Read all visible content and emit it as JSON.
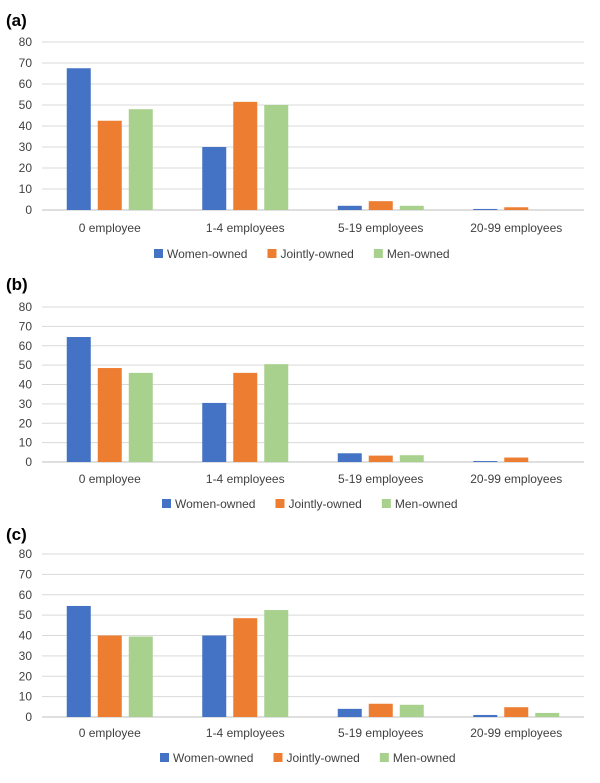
{
  "colors": {
    "women": "#4472C4",
    "jointly": "#ED7D31",
    "men": "#A9D18E",
    "grid": "#D9D9D9",
    "text": "#404040"
  },
  "chart_data": [
    {
      "panel_label": "(a)",
      "type": "bar",
      "categories": [
        "0 employee",
        "1-4 employees",
        "5-19 employees",
        "20-99 employees"
      ],
      "series": [
        {
          "name": "Women-owned",
          "values": [
            67.5,
            30,
            2,
            0.5
          ]
        },
        {
          "name": "Jointly-owned",
          "values": [
            42.5,
            51.5,
            4.2,
            1.3
          ]
        },
        {
          "name": "Men-owned",
          "values": [
            48,
            50,
            2,
            0
          ]
        }
      ],
      "ylim": [
        0,
        80
      ],
      "yticks": [
        0,
        10,
        20,
        30,
        40,
        50,
        60,
        70,
        80
      ],
      "grid": true,
      "legend": "bottom"
    },
    {
      "panel_label": "(b)",
      "type": "bar",
      "categories": [
        "0 employee",
        "1-4 employees",
        "5-19 employees",
        "20-99 employees"
      ],
      "series": [
        {
          "name": "Women-owned",
          "values": [
            64.5,
            30.5,
            4.5,
            0.5
          ]
        },
        {
          "name": "Jointly-owned",
          "values": [
            48.5,
            46,
            3.3,
            2.3
          ]
        },
        {
          "name": "Men-owned",
          "values": [
            46,
            50.5,
            3.5,
            0
          ]
        }
      ],
      "ylim": [
        0,
        80
      ],
      "yticks": [
        0,
        10,
        20,
        30,
        40,
        50,
        60,
        70,
        80
      ],
      "grid": true,
      "legend": "bottom"
    },
    {
      "panel_label": "(c)",
      "type": "bar",
      "categories": [
        "0 employee",
        "1-4 employees",
        "5-19 employees",
        "20-99 employees"
      ],
      "series": [
        {
          "name": "Women-owned",
          "values": [
            54.5,
            40,
            4,
            1
          ]
        },
        {
          "name": "Jointly-owned",
          "values": [
            40,
            48.5,
            6.5,
            4.8
          ]
        },
        {
          "name": "Men-owned",
          "values": [
            39.5,
            52.5,
            6,
            2
          ]
        }
      ],
      "ylim": [
        0,
        80
      ],
      "yticks": [
        0,
        10,
        20,
        30,
        40,
        50,
        60,
        70,
        80
      ],
      "grid": true,
      "legend": "bottom"
    }
  ]
}
